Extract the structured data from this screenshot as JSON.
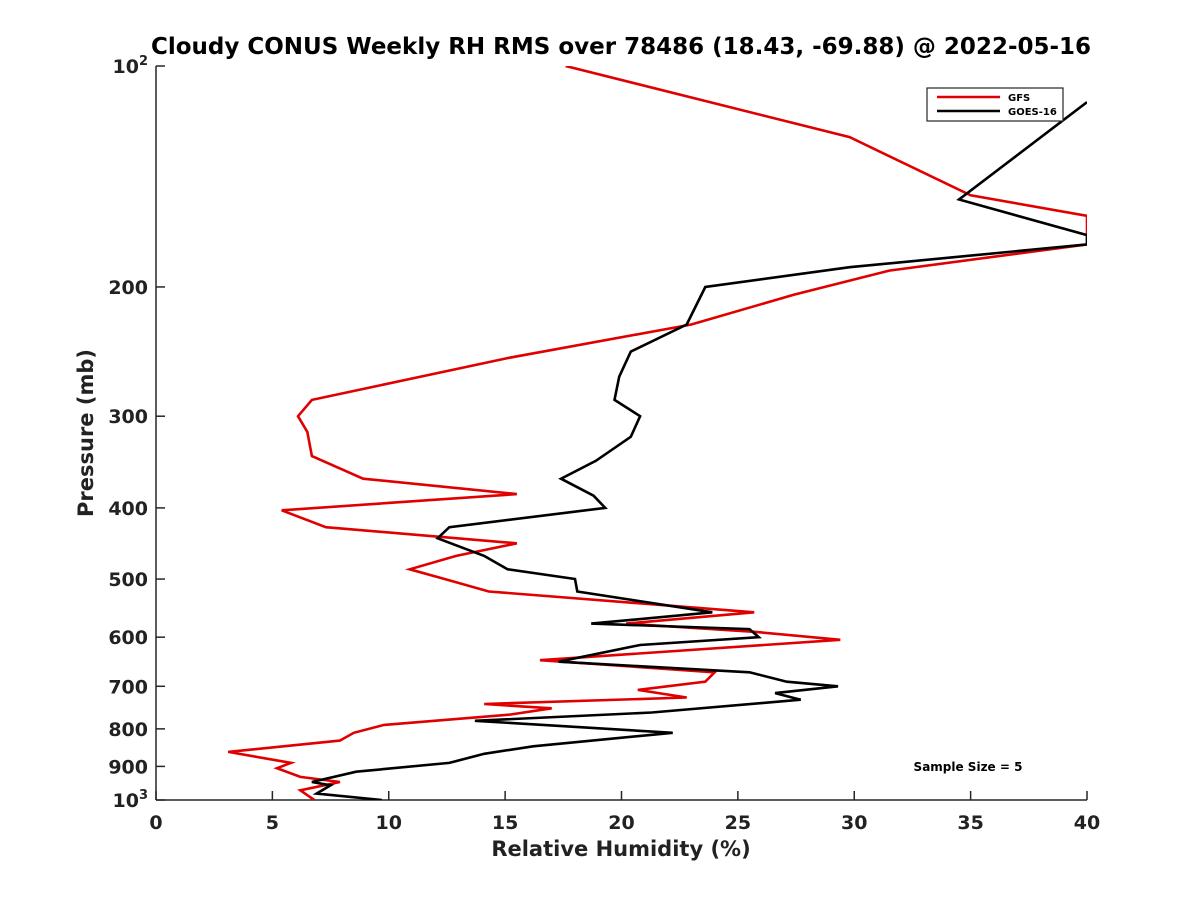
{
  "chart_data": {
    "type": "line",
    "title": "Cloudy CONUS Weekly RH RMS over 78486 (18.43, -69.88) @ 2022-05-16",
    "xlabel": "Relative Humidity (%)",
    "ylabel": "Pressure (mb)",
    "xlim": [
      0,
      40
    ],
    "ylim": [
      100,
      1000
    ],
    "y_scale": "log",
    "y_reversed": true,
    "grid": false,
    "legend_position": "top-right",
    "x_ticks": [
      "0",
      "5",
      "10",
      "15",
      "20",
      "25",
      "30",
      "35",
      "40"
    ],
    "y_ticks": [
      {
        "value": 100,
        "base": "10",
        "exp": "2"
      },
      {
        "value": 200,
        "label": "200"
      },
      {
        "value": 300,
        "label": "300"
      },
      {
        "value": 400,
        "label": "400"
      },
      {
        "value": 500,
        "label": "500"
      },
      {
        "value": 600,
        "label": "600"
      },
      {
        "value": 700,
        "label": "700"
      },
      {
        "value": 800,
        "label": "800"
      },
      {
        "value": 900,
        "label": "900"
      },
      {
        "value": 1000,
        "base": "10",
        "exp": "3"
      }
    ],
    "annotation": "Sample Size = 5",
    "series": [
      {
        "name": "GFS",
        "color": "#e00000",
        "points": [
          [
            17.6,
            100
          ],
          [
            29.8,
            125
          ],
          [
            35.0,
            150
          ],
          [
            40.0,
            160
          ],
          [
            40.0,
            175
          ],
          [
            31.5,
            190
          ],
          [
            27.4,
            205
          ],
          [
            23.0,
            225
          ],
          [
            15.1,
            250
          ],
          [
            6.7,
            285
          ],
          [
            6.1,
            300
          ],
          [
            6.5,
            315
          ],
          [
            6.7,
            340
          ],
          [
            8.9,
            365
          ],
          [
            15.5,
            383
          ],
          [
            5.4,
            403
          ],
          [
            7.3,
            425
          ],
          [
            15.5,
            447
          ],
          [
            12.9,
            465
          ],
          [
            10.9,
            485
          ],
          [
            12.4,
            500
          ],
          [
            14.3,
            520
          ],
          [
            25.7,
            555
          ],
          [
            20.2,
            575
          ],
          [
            25.7,
            590
          ],
          [
            29.4,
            605
          ],
          [
            16.5,
            645
          ],
          [
            24.0,
            670
          ],
          [
            23.6,
            690
          ],
          [
            20.7,
            708
          ],
          [
            22.8,
            725
          ],
          [
            14.1,
            740
          ],
          [
            17.0,
            750
          ],
          [
            15.2,
            765
          ],
          [
            9.8,
            790
          ],
          [
            8.5,
            810
          ],
          [
            7.9,
            830
          ],
          [
            3.1,
            860
          ],
          [
            5.8,
            890
          ],
          [
            5.2,
            905
          ],
          [
            6.2,
            930
          ],
          [
            7.9,
            945
          ],
          [
            6.2,
            970
          ],
          [
            6.8,
            1000
          ]
        ]
      },
      {
        "name": "GOES-16",
        "color": "#000000",
        "points": [
          [
            40.0,
            112
          ],
          [
            34.5,
            152
          ],
          [
            40.0,
            170
          ],
          [
            40.0,
            175
          ],
          [
            29.8,
            188
          ],
          [
            23.6,
            200
          ],
          [
            22.8,
            225
          ],
          [
            20.4,
            245
          ],
          [
            19.9,
            265
          ],
          [
            19.7,
            285
          ],
          [
            20.8,
            300
          ],
          [
            20.4,
            320
          ],
          [
            18.9,
            345
          ],
          [
            17.4,
            365
          ],
          [
            18.8,
            385
          ],
          [
            19.3,
            400
          ],
          [
            12.6,
            425
          ],
          [
            12.1,
            440
          ],
          [
            14.1,
            465
          ],
          [
            15.1,
            485
          ],
          [
            18.0,
            500
          ],
          [
            18.1,
            520
          ],
          [
            23.9,
            555
          ],
          [
            18.7,
            575
          ],
          [
            25.5,
            585
          ],
          [
            25.9,
            600
          ],
          [
            20.8,
            615
          ],
          [
            17.3,
            648
          ],
          [
            25.5,
            670
          ],
          [
            27.1,
            690
          ],
          [
            29.3,
            700
          ],
          [
            26.6,
            715
          ],
          [
            27.7,
            730
          ],
          [
            21.3,
            760
          ],
          [
            13.7,
            780
          ],
          [
            22.2,
            810
          ],
          [
            16.2,
            845
          ],
          [
            14.1,
            865
          ],
          [
            12.6,
            890
          ],
          [
            8.6,
            915
          ],
          [
            6.7,
            945
          ],
          [
            7.5,
            955
          ],
          [
            6.9,
            980
          ],
          [
            9.7,
            1000
          ]
        ]
      }
    ]
  }
}
